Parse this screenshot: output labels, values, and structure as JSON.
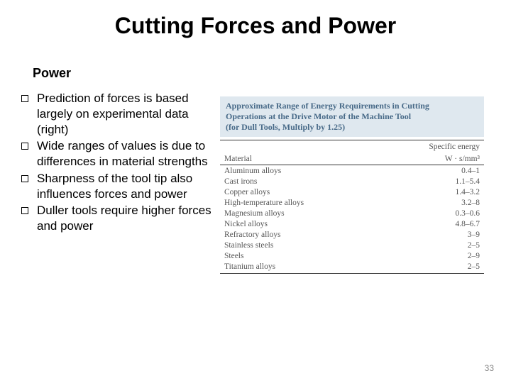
{
  "title": "Cutting Forces and Power",
  "subheading": "Power",
  "bullets": [
    "Prediction of forces is based largely on experimental data (right)",
    "Wide ranges of values is due to differences in material strengths",
    "Sharpness of the tool tip also influences forces and power",
    "Duller tools require higher forces and power"
  ],
  "table": {
    "title_line1": "Approximate Range of Energy Requirements in Cutting",
    "title_line2": "Operations at the Drive Motor of the Machine Tool",
    "title_line3": "(for Dull Tools, Multiply by 1.25)",
    "header_col1": "Material",
    "header_col2": "Specific energy",
    "header_unit": "W · s/mm³",
    "rows": [
      {
        "material": "Aluminum alloys",
        "energy": "0.4–1"
      },
      {
        "material": "Cast irons",
        "energy": "1.1–5.4"
      },
      {
        "material": "Copper alloys",
        "energy": "1.4–3.2"
      },
      {
        "material": "High-temperature alloys",
        "energy": "3.2–8"
      },
      {
        "material": "Magnesium alloys",
        "energy": "0.3–0.6"
      },
      {
        "material": "Nickel alloys",
        "energy": "4.8–6.7"
      },
      {
        "material": "Refractory alloys",
        "energy": "3–9"
      },
      {
        "material": "Stainless steels",
        "energy": "2–5"
      },
      {
        "material": "Steels",
        "energy": "2–9"
      },
      {
        "material": "Titanium alloys",
        "energy": "2–5"
      }
    ]
  },
  "page_number": "33",
  "colors": {
    "table_header_bg": "#dfe8ef",
    "table_header_text": "#486a88"
  }
}
